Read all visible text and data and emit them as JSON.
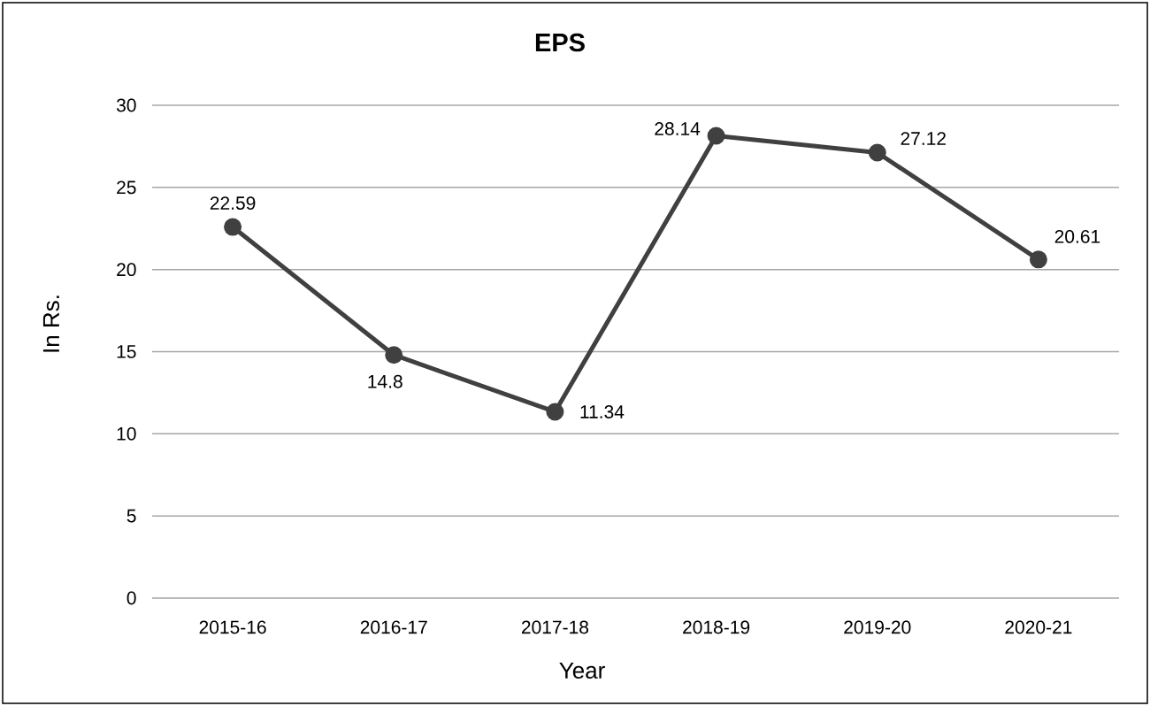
{
  "chart_data": {
    "type": "line",
    "title": "EPS",
    "xlabel": "Year",
    "ylabel": "In Rs.",
    "categories": [
      "2015-16",
      "2016-17",
      "2017-18",
      "2018-19",
      "2019-20",
      "2020-21"
    ],
    "values": [
      22.59,
      14.8,
      11.34,
      28.14,
      27.12,
      20.61
    ],
    "color": "#404040",
    "ylim": [
      0,
      30
    ],
    "yticks": [
      0,
      5,
      10,
      15,
      20,
      25,
      30
    ],
    "grid": "y",
    "marker": "circle",
    "line_style": "solid",
    "data_labels": true
  }
}
